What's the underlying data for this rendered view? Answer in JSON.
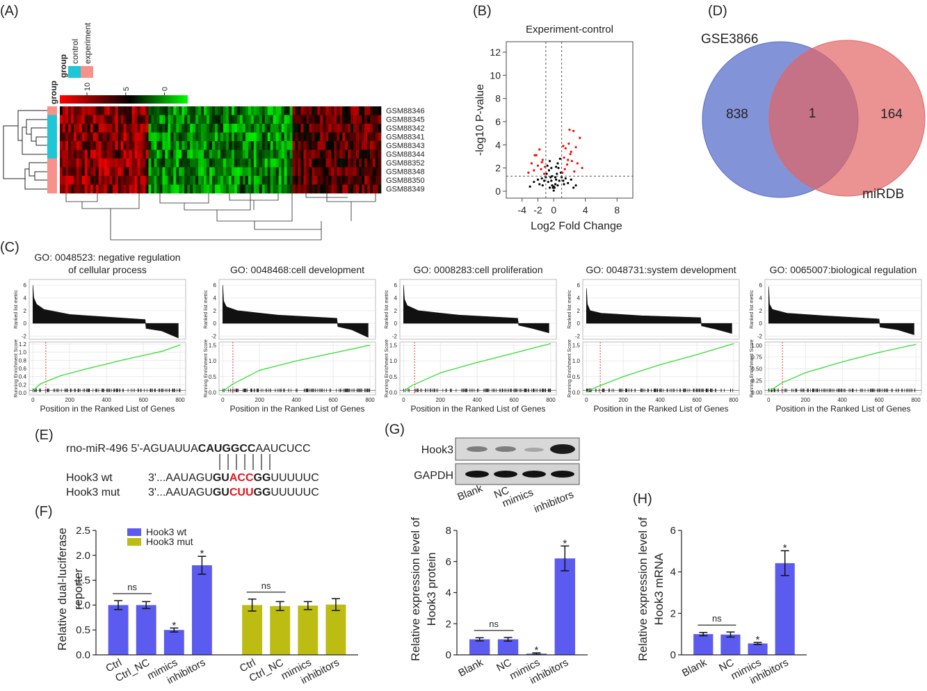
{
  "panel_labels": [
    "(A)",
    "(B)",
    "(C)",
    "(D)",
    "(E)",
    "(F)",
    "(G)",
    "(H)"
  ],
  "chart_data": [
    {
      "type": "heatmap",
      "group_title": "group",
      "groups": [
        {
          "name": "control",
          "color": "#1fc6d6"
        },
        {
          "name": "experiment",
          "color": "#f6928a"
        }
      ],
      "colorbar_title": "group",
      "colorbar_ticks": [
        10,
        5,
        0
      ],
      "colorbar_lim": [
        13.5,
        -3
      ],
      "rows": [
        "GSM88346",
        "GSM88345",
        "GSM88342",
        "GSM88341",
        "GSM88343",
        "GSM88344",
        "GSM88352",
        "GSM88348",
        "GSM88350",
        "GSM88349"
      ],
      "row_groups": [
        1,
        0,
        0,
        0,
        0,
        0,
        1,
        1,
        1,
        1
      ]
    },
    {
      "type": "scatter",
      "title": "Experiment-control",
      "xlabel": "Log2 Fold Change",
      "ylabel": "-log10 P-value",
      "xlim": [
        -6,
        10
      ],
      "ylim": [
        -0.6,
        12.9
      ],
      "xticks": [
        -4,
        -2,
        0,
        4,
        8
      ],
      "yticks": [
        0,
        2,
        4,
        6,
        8,
        10,
        12
      ],
      "thresholds": {
        "x": [
          -1,
          1
        ],
        "y": 1.3
      },
      "series": [
        {
          "color": "#000000",
          "x": [
            -2.5,
            -2,
            -1.8,
            -1.5,
            -1.2,
            -1,
            -0.8,
            -0.6,
            -0.5,
            -0.4,
            -0.3,
            -0.2,
            -0.1,
            0,
            0.1,
            0.2,
            0.3,
            0.4,
            0.5,
            0.6,
            0.8,
            1,
            1.2,
            1.5,
            1.8,
            2.2,
            2.8,
            -3,
            -0.7,
            0.7,
            -0.3,
            0.3,
            0,
            -0.9,
            0.9,
            -0.5,
            0.5,
            0.2,
            -0.2,
            1.3,
            -1.4,
            2.5
          ],
          "values": [
            0.8,
            1,
            0.6,
            1.1,
            0.9,
            1.2,
            2.2,
            1.8,
            2.6,
            1.2,
            0.9,
            0.5,
            0.3,
            0.05,
            0.3,
            0.6,
            1,
            1.5,
            2.4,
            2,
            2.8,
            1.2,
            0.9,
            1.1,
            0.7,
            1,
            0.5,
            0.4,
            0.8,
            0.9,
            2,
            2.1,
            0.4,
            1.5,
            1.6,
            0.3,
            0.5,
            1.2,
            1.3,
            0.6,
            0.5,
            0.3
          ]
        },
        {
          "color": "#ff0000",
          "x": [
            -3.2,
            -2.8,
            -2.5,
            -2.2,
            -2,
            -1.8,
            -1.6,
            -1.4,
            -1.2,
            -1.1,
            1.1,
            1.3,
            1.5,
            1.7,
            1.9,
            2.1,
            2.3,
            2.5,
            2.8,
            3,
            3.3,
            1.4,
            1.8,
            2.2,
            2.6,
            -1.5,
            -2.4,
            3.6,
            2,
            1.2
          ],
          "values": [
            1.6,
            2.4,
            1.8,
            3.1,
            2.2,
            3.6,
            1.9,
            2.7,
            1.5,
            2.1,
            1.6,
            2.9,
            3.7,
            2.3,
            4.1,
            3.2,
            2.6,
            5.2,
            3.8,
            2.4,
            4.6,
            1.9,
            2.7,
            3.4,
            1.7,
            2.5,
            3.1,
            2,
            5.3,
            3.9
          ]
        }
      ]
    },
    {
      "type": "venn",
      "sets": [
        {
          "name": "GSE3866",
          "color": "#5a6fc9",
          "value": 838
        },
        {
          "name": "miRDB",
          "color": "#e36464",
          "value": 164
        }
      ],
      "overlap": 1
    },
    {
      "type": "gsea",
      "title": [
        "GO: 0048523: negative regulation",
        "of cellular process"
      ],
      "ylabel_top": "Ranked list metric",
      "ylabel_bottom": "Running Enrichment Score",
      "xlabel": "Position in the Ranked List of Genes",
      "xlim": [
        -20,
        830
      ],
      "xticks": [
        0,
        200,
        400,
        600,
        800
      ],
      "ylim_top": [
        -2.5,
        6.9
      ],
      "yticks_top": [
        -2,
        0,
        2,
        4,
        6
      ],
      "ylim_bottom": [
        -0.05,
        1.25
      ],
      "yticks_bottom": [
        {
          "value": 0,
          "label": "0.0"
        },
        0.2,
        0.4,
        0.6,
        0.8,
        {
          "value": 1,
          "label": "1.0"
        },
        1.2
      ],
      "metric_x": [
        0,
        5,
        20,
        60,
        200,
        400,
        610,
        615,
        700,
        790
      ],
      "metric": [
        6,
        4,
        3,
        2.2,
        1.4,
        1,
        0.6,
        -0.8,
        -1.2,
        -2.3
      ],
      "score_x": [
        0,
        40,
        150,
        300,
        500,
        700,
        800
      ],
      "score": [
        0.05,
        0.22,
        0.42,
        0.6,
        0.82,
        1.02,
        1.18
      ],
      "marker_x": 70,
      "line_color": "#33dd33"
    },
    {
      "type": "gsea",
      "title": [
        "GO: 0048468:cell development"
      ],
      "ylabel_top": "Ranked list metric",
      "ylabel_bottom": "Running Enrichment Score",
      "xlabel": "Position in the Ranked List of Genes",
      "xlim": [
        -20,
        830
      ],
      "xticks": [
        0,
        200,
        400,
        600,
        800
      ],
      "ylim_top": [
        -2.5,
        6.9
      ],
      "yticks_top": [
        -2,
        0,
        2,
        4,
        6
      ],
      "ylim_bottom": [
        -0.08,
        1.6
      ],
      "yticks_bottom": [
        {
          "value": 0,
          "label": "0.0"
        },
        0.5,
        {
          "value": 1,
          "label": "1.0"
        },
        1.5
      ],
      "metric_x": [
        0,
        5,
        20,
        80,
        300,
        620,
        625,
        700,
        790
      ],
      "metric": [
        6,
        3.5,
        2.6,
        2,
        1.3,
        0.8,
        -0.5,
        -1,
        -2.2
      ],
      "score_x": [
        0,
        50,
        200,
        400,
        600,
        800
      ],
      "score": [
        0.03,
        0.25,
        0.7,
        1.0,
        1.25,
        1.5
      ],
      "marker_x": 55,
      "line_color": "#33dd33"
    },
    {
      "type": "gsea",
      "title": [
        "GO: 0008283:cell proliferation"
      ],
      "ylabel_top": "Ranked list metric",
      "ylabel_bottom": "Running Enrichment Score",
      "xlabel": "Position in the Ranked List of Genes",
      "xlim": [
        -20,
        830
      ],
      "xticks": [
        0,
        200,
        400,
        600,
        800
      ],
      "ylim_top": [
        -2.5,
        6.9
      ],
      "yticks_top": [
        -2,
        0,
        2,
        4,
        6
      ],
      "ylim_bottom": [
        -0.08,
        1.6
      ],
      "yticks_bottom": [
        {
          "value": 0,
          "label": "0.0"
        },
        0.5,
        {
          "value": 1,
          "label": "1.0"
        },
        1.5
      ],
      "metric_x": [
        0,
        5,
        20,
        80,
        300,
        620,
        625,
        700,
        790
      ],
      "metric": [
        6,
        3.8,
        2.8,
        2,
        1.3,
        0.8,
        -0.3,
        -0.8,
        -1.5
      ],
      "score_x": [
        0,
        40,
        200,
        400,
        600,
        800
      ],
      "score": [
        0.03,
        0.2,
        0.62,
        0.95,
        1.25,
        1.55
      ],
      "marker_x": 60,
      "line_color": "#33dd33"
    },
    {
      "type": "gsea",
      "title": [
        "GO: 0048731:system development"
      ],
      "ylabel_top": "Ranked list metric",
      "ylabel_bottom": "Running Enrichment Score",
      "xlabel": "Position in the Ranked List of Genes",
      "xlim": [
        -20,
        830
      ],
      "xticks": [
        0,
        200,
        400,
        600,
        800
      ],
      "ylim_top": [
        -2.5,
        6.9
      ],
      "yticks_top": [
        -2,
        0,
        2,
        4,
        6
      ],
      "ylim_bottom": [
        -0.08,
        1.6
      ],
      "yticks_bottom": [
        {
          "value": 0,
          "label": "0.0"
        },
        0.5,
        {
          "value": 1,
          "label": "1.0"
        },
        1.5
      ],
      "metric_x": [
        0,
        5,
        20,
        80,
        300,
        620,
        625,
        700,
        790
      ],
      "metric": [
        5.5,
        3,
        2,
        1.6,
        1.2,
        0.9,
        -0.4,
        -0.9,
        -1.6
      ],
      "score_x": [
        0,
        60,
        200,
        400,
        600,
        800
      ],
      "score": [
        0.02,
        0.18,
        0.5,
        0.88,
        1.2,
        1.55
      ],
      "marker_x": 75,
      "line_color": "#33dd33"
    },
    {
      "type": "gsea",
      "title": [
        "GO: 0065007:biological regulation"
      ],
      "ylabel_top": "Ranked list metric",
      "ylabel_bottom": "Running Enrichment Score",
      "xlabel": "Position in the Ranked List of Genes",
      "xlim": [
        -20,
        830
      ],
      "xticks": [
        0,
        200,
        400,
        600,
        800
      ],
      "ylim_top": [
        -2.5,
        6.9
      ],
      "yticks_top": [
        -2,
        0,
        2,
        4,
        6
      ],
      "ylim_bottom": [
        -0.05,
        1.07
      ],
      "yticks_bottom": [
        {
          "value": 0,
          "label": "0.00"
        },
        0.25,
        {
          "value": 0.5,
          "label": "0.50"
        },
        0.75,
        {
          "value": 1,
          "label": "1.00"
        }
      ],
      "metric_x": [
        0,
        5,
        20,
        100,
        300,
        600,
        605,
        700,
        790
      ],
      "metric": [
        5.8,
        3,
        2.2,
        1.6,
        1.2,
        0.7,
        -0.6,
        -1,
        -1.8
      ],
      "score_x": [
        0,
        70,
        200,
        400,
        600,
        800
      ],
      "score": [
        0.02,
        0.2,
        0.42,
        0.65,
        0.85,
        1.02
      ],
      "marker_x": 75,
      "line_color": "#33dd33"
    },
    {
      "type": "bar",
      "ylabel": [
        "Relative dual-luciferase",
        "reporter"
      ],
      "categories": [
        "Ctrl",
        "Ctrl_NC",
        "mimics",
        "inhibitors"
      ],
      "ylim": [
        0,
        2.5
      ],
      "yticks": [
        {
          "value": 0,
          "label": "0.0"
        },
        0.5,
        {
          "value": 1,
          "label": "1.0"
        },
        1.5,
        {
          "value": 2,
          "label": "2.0"
        },
        2.5
      ],
      "series": [
        {
          "name": "Hook3 wt",
          "color": "#5b5bf0",
          "values": [
            1.0,
            1.0,
            0.5,
            1.8
          ],
          "errors": [
            0.09,
            0.07,
            0.04,
            0.18
          ]
        },
        {
          "name": "Hook3 mut",
          "color": "#bcbc12",
          "values": [
            1.0,
            0.98,
            0.99,
            1.01
          ],
          "errors": [
            0.12,
            0.09,
            0.08,
            0.12
          ]
        }
      ],
      "annotations": [
        {
          "text": "ns",
          "series": 0,
          "from": 0,
          "to": 1
        },
        {
          "text": "*",
          "series": 0,
          "at": 2
        },
        {
          "text": "*",
          "series": 0,
          "at": 3
        },
        {
          "text": "ns",
          "series": 1,
          "from": 0,
          "to": 1
        }
      ]
    },
    {
      "type": "bar",
      "ylabel": [
        "Relative expression level of",
        "Hook3 protein"
      ],
      "categories": [
        "Blank",
        "NC",
        "mimics",
        "inhibitors"
      ],
      "color": "#5b5bf0",
      "values": [
        1.0,
        1.0,
        0.08,
        6.2
      ],
      "errors": [
        0.1,
        0.12,
        0.05,
        0.8
      ],
      "ylim": [
        0,
        8
      ],
      "yticks": [
        0,
        2,
        4,
        6,
        8
      ],
      "annotations": [
        {
          "text": "ns",
          "from": 0,
          "to": 1
        },
        {
          "text": "*",
          "at": 2
        },
        {
          "text": "*",
          "at": 3
        }
      ]
    },
    {
      "type": "bar",
      "ylabel": [
        "Relative expression level of",
        "Hook3 mRNA"
      ],
      "categories": [
        "Blank",
        "NC",
        "mimics",
        "inhibitors"
      ],
      "color": "#5b5bf0",
      "values": [
        1.0,
        0.98,
        0.55,
        4.42
      ],
      "errors": [
        0.08,
        0.12,
        0.05,
        0.6
      ],
      "ylim": [
        0,
        6
      ],
      "yticks": [
        0,
        2,
        4,
        6
      ],
      "annotations": [
        {
          "text": "ns",
          "from": 0,
          "to": 1
        },
        {
          "text": "*",
          "at": 2
        },
        {
          "text": "*",
          "at": 3
        }
      ]
    }
  ],
  "alignment": {
    "lines": [
      {
        "segments": [
          {
            "text": "rno-miR-496 5'-AGUAUUA",
            "style": "plain"
          },
          {
            "text": "CAUGGCC",
            "style": "bold"
          },
          {
            "text": "AAUCUCC",
            "style": "plain"
          }
        ]
      },
      {
        "label": "Hook3 wt",
        "segments": [
          {
            "text": "3'...AAUAGU",
            "style": "plain"
          },
          {
            "text": "GU",
            "style": "bold"
          },
          {
            "text": "ACC",
            "style": "red"
          },
          {
            "text": "GG",
            "style": "bold"
          },
          {
            "text": "UUUUUC",
            "style": "plain"
          }
        ]
      },
      {
        "label": "Hook3 mut",
        "segments": [
          {
            "text": "3'...AAUAGU",
            "style": "plain"
          },
          {
            "text": "GU",
            "style": "bold"
          },
          {
            "text": "CUU",
            "style": "red"
          },
          {
            "text": "GG",
            "style": "bold"
          },
          {
            "text": "UUUUUC",
            "style": "plain"
          }
        ]
      }
    ]
  },
  "blot": {
    "rows": [
      "Hook3",
      "GAPDH"
    ],
    "lanes": [
      "Blank",
      "NC",
      "mimics",
      "inhibitors"
    ]
  }
}
